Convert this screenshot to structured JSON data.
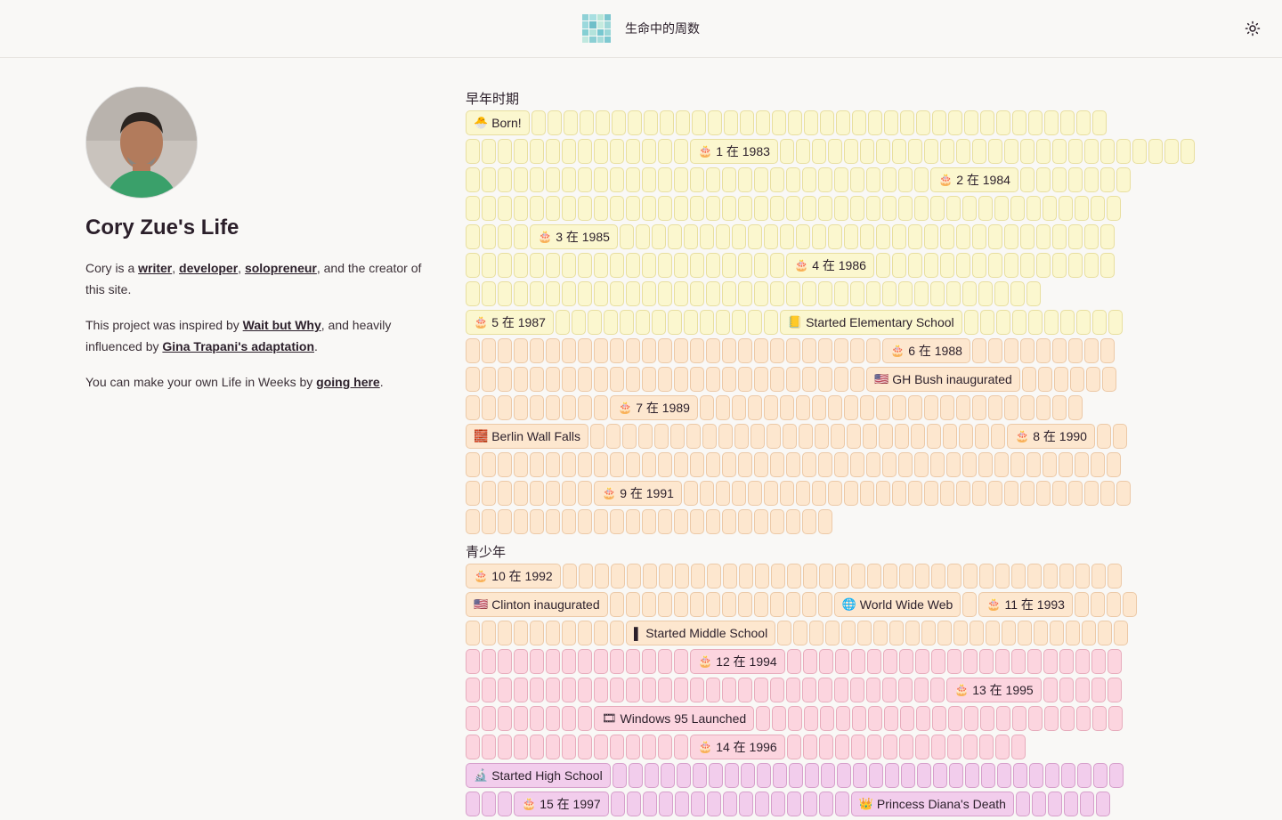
{
  "header": {
    "title": "生命中的周数",
    "logo_colors": [
      "#8fd1d6",
      "#a8dfe1",
      "#b8e6d8",
      "#7cc6cf",
      "#9bd8dc",
      "#6fbfc9",
      "#c4ebdf",
      "#a0d8d9",
      "#85cfd3",
      "#b3e3dc",
      "#77c7d0",
      "#9ad7d8",
      "#c0e8df",
      "#8bcfd4",
      "#a6dcdb",
      "#7fc9d1"
    ],
    "theme_icon": "sun-icon"
  },
  "profile": {
    "name": "Cory Zue's Life",
    "intro": {
      "pre": "Cory is a ",
      "l1": "writer",
      "s1": ", ",
      "l2": "developer",
      "s2": ", ",
      "l3": "solopreneur",
      "post": ", and the creator of this site."
    },
    "inspired": {
      "pre": "This project was inspired by ",
      "l1": "Wait but Why",
      "mid": ", and heavily influenced by ",
      "l2": "Gina Trapani's adaptation",
      "post": "."
    },
    "own": {
      "pre": "You can make your own Life in Weeks by ",
      "l1": "going here",
      "post": "."
    }
  },
  "sections": [
    {
      "title": "早年时期",
      "rows": [
        {
          "tone": "yellow",
          "items": [
            {
              "e": "🐣",
              "t": "Born!"
            },
            36
          ]
        },
        {
          "tone": "yellow",
          "items": [
            14,
            {
              "e": "🎂",
              "t": "1 在 1983"
            },
            26
          ]
        },
        {
          "tone": "yellow",
          "items": [
            29,
            {
              "e": "🎂",
              "t": "2 在 1984"
            },
            7
          ]
        },
        {
          "tone": "yellow",
          "items": [
            41
          ]
        },
        {
          "tone": "yellow",
          "items": [
            4,
            {
              "e": "🎂",
              "t": "3 在 1985"
            },
            31
          ]
        },
        {
          "tone": "yellow",
          "items": [
            20,
            {
              "e": "🎂",
              "t": "4 在 1986"
            },
            15
          ]
        },
        {
          "tone": "yellow",
          "items": [
            36
          ]
        },
        {
          "tone": "yellow",
          "items": [
            {
              "e": "🎂",
              "t": "5 在 1987"
            },
            14,
            {
              "e": "📒",
              "t": "Started Elementary School"
            },
            10,
            "peach"
          ]
        },
        {
          "tone": "peach",
          "items": [
            26,
            {
              "e": "🎂",
              "t": "6 在 1988"
            },
            9
          ]
        },
        {
          "tone": "peach",
          "items": [
            25,
            {
              "e": "🇺🇸",
              "t": "GH Bush inaugurated"
            },
            6
          ]
        },
        {
          "tone": "peach",
          "items": [
            9,
            {
              "e": "🎂",
              "t": "7 在 1989"
            },
            24
          ]
        },
        {
          "tone": "peach",
          "items": [
            {
              "e": "🧱",
              "t": "Berlin Wall Falls"
            },
            26,
            {
              "e": "🎂",
              "t": "8 在 1990"
            },
            2
          ]
        },
        {
          "tone": "peach",
          "items": [
            41
          ]
        },
        {
          "tone": "peach",
          "items": [
            8,
            {
              "e": "🎂",
              "t": "9 在 1991"
            },
            28
          ]
        },
        {
          "tone": "peach",
          "items": [
            23
          ]
        }
      ]
    },
    {
      "title": "青少年",
      "rows": [
        {
          "tone": "peach",
          "items": [
            {
              "e": "🎂",
              "t": "10 在 1992"
            },
            35
          ]
        },
        {
          "tone": "peach",
          "items": [
            {
              "e": "🇺🇸",
              "t": "Clinton inaugurated"
            },
            14,
            {
              "e": "🌐",
              "t": "World Wide Web"
            },
            1,
            {
              "e": "🎂",
              "t": "11 在 1993"
            },
            4
          ]
        },
        {
          "tone": "peach",
          "items": [
            10,
            {
              "e": "▌",
              "t": "Started Middle School"
            },
            22,
            "pink"
          ]
        },
        {
          "tone": "pink",
          "items": [
            14,
            {
              "e": "🎂",
              "t": "12 在 1994"
            },
            21
          ]
        },
        {
          "tone": "pink",
          "items": [
            30,
            {
              "e": "🎂",
              "t": "13 在 1995"
            },
            5
          ]
        },
        {
          "tone": "pink",
          "items": [
            8,
            {
              "e": "🎞",
              "t": "Windows 95 Launched"
            },
            23
          ]
        },
        {
          "tone": "pink",
          "items": [
            14,
            {
              "e": "🎂",
              "t": "14 在 1996"
            },
            15
          ]
        },
        {
          "tone": "mauve",
          "items": [
            {
              "e": "🔬",
              "t": "Started High School"
            },
            32
          ]
        },
        {
          "tone": "mauve",
          "items": [
            3,
            {
              "e": "🎂",
              "t": "15 在 1997"
            },
            15,
            {
              "e": "👑",
              "t": "Princess Diana's Death"
            },
            6
          ]
        }
      ]
    }
  ]
}
